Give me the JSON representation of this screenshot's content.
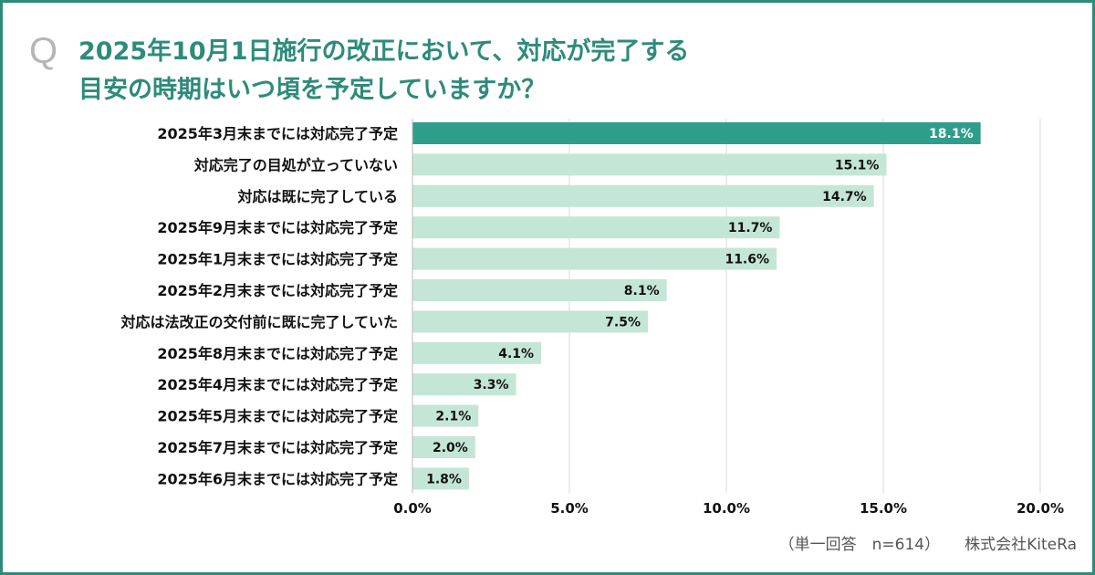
{
  "question_mark": "Q",
  "title_lines": [
    "2025年10月1日施行の改正において、対応が完了する",
    "目安の時期はいつ頃を予定していますか？"
  ],
  "footer": {
    "note": "（単一回答　n=614）",
    "company": "株式会社KiteRa"
  },
  "colors": {
    "highlight": "#2e9e8a",
    "bar": "#c4e6d6",
    "border": "#2e8b7a",
    "title": "#2e8b7a"
  },
  "chart_data": {
    "type": "bar",
    "orientation": "horizontal",
    "categories": [
      "2025年3月末までには対応完了予定",
      "対応完了の目処が立っていない",
      "対応は既に完了している",
      "2025年9月末までには対応完了予定",
      "2025年1月末までには対応完了予定",
      "2025年2月末までには対応完了予定",
      "対応は法改正の交付前に既に完了していた",
      "2025年8月末までには対応完了予定",
      "2025年4月末までには対応完了予定",
      "2025年5月末までには対応完了予定",
      "2025年7月末までには対応完了予定",
      "2025年6月末までには対応完了予定"
    ],
    "values": [
      18.1,
      15.1,
      14.7,
      11.7,
      11.6,
      8.1,
      7.5,
      4.1,
      3.3,
      2.1,
      2.0,
      1.8
    ],
    "data_labels": [
      "18.1%",
      "15.1%",
      "14.7%",
      "11.7%",
      "11.6%",
      "8.1%",
      "7.5%",
      "4.1%",
      "3.3%",
      "2.1%",
      "2.0%",
      "1.8%"
    ],
    "xlim": [
      0,
      20
    ],
    "xticks": [
      "0.0%",
      "5.0%",
      "10.0%",
      "15.0%",
      "20.0%"
    ],
    "grid": true,
    "xlabel": "",
    "ylabel": ""
  }
}
